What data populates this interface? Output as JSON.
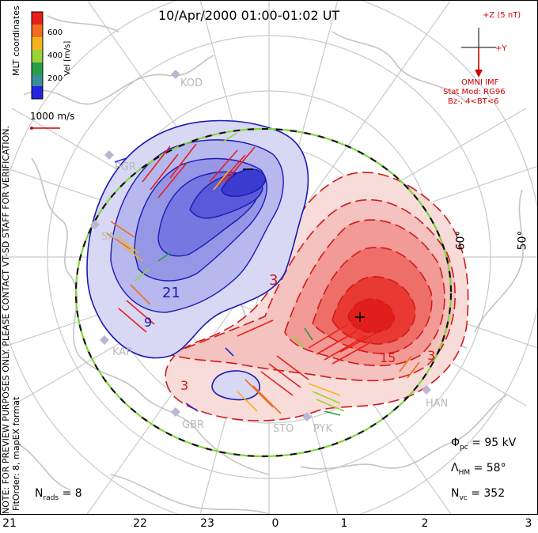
{
  "title": "10/Apr/2000 01:00-01:02 UT",
  "side_notes": {
    "note": "NOTE: FOR PREVIEW PURPOSES ONLY. PLEASE CONTACT VT-SD STAFF FOR VERIFICATION.",
    "fitorder": "FitOrder: 8, mapEX format",
    "coords": "MLT coordinates"
  },
  "colorbar": {
    "label": "Vel [m/s]",
    "ticks": [
      "600",
      "400",
      "200"
    ],
    "colors": [
      "#e8201c",
      "#f26b1e",
      "#f7b31d",
      "#9bd235",
      "#2a9d48",
      "#3a8c9c",
      "#2424e0"
    ]
  },
  "vector_scale": "1000 m/s",
  "imf": {
    "top_label": "+Z (5 nT)",
    "y_label": "+Y",
    "source": "OMNI IMF",
    "model": "Stat Mod: RG96",
    "condition": "Bz-, 4<BT<6",
    "color": "#d40000"
  },
  "stations": [
    "KOD",
    "PGR",
    "SAS",
    "KAP",
    "GBR",
    "STO",
    "PYK",
    "HAN"
  ],
  "contour_labels": {
    "neg_a": "21",
    "neg_b": "9",
    "pos_a": "3",
    "pos_b": "3",
    "pos_c": "15",
    "pos_d": "3"
  },
  "stats": {
    "phi_symbol": "Φ",
    "phi_sub": "pc",
    "phi_value": "= 95 kV",
    "lambda_symbol": "Λ",
    "lambda_sub": "HM",
    "lambda_value": "= 58°",
    "nvc_symbol": "N",
    "nvc_sub": "vc",
    "nvc_value": "= 352",
    "nrads_symbol": "N",
    "nrads_sub": "rads",
    "nrads_value": "= 8"
  },
  "lat_labels": [
    "60°",
    "50°"
  ],
  "mlt_ticks": [
    "21",
    "22",
    "23",
    "0",
    "1",
    "2",
    "3"
  ],
  "colors": {
    "negative": "#4040e0",
    "positive": "#e82020",
    "boundary": "#7fd63a"
  }
}
